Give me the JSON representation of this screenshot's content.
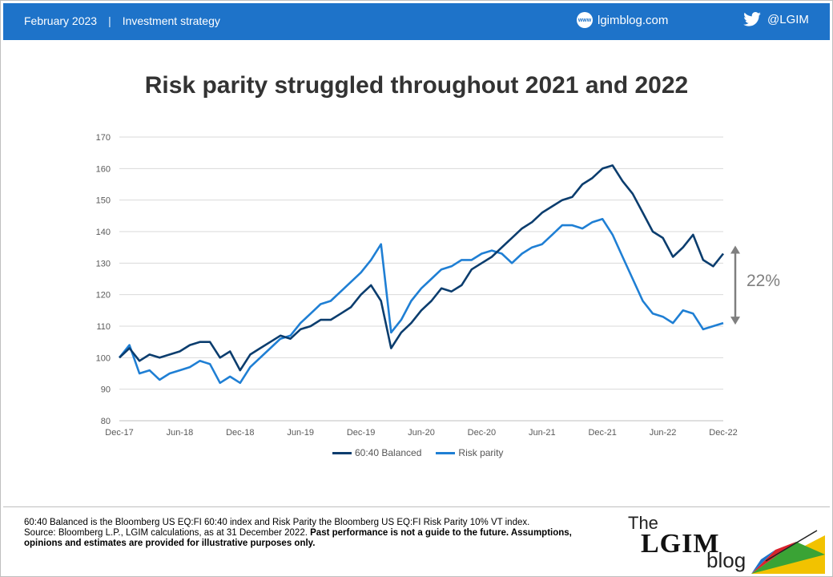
{
  "header": {
    "date": "February 2023",
    "separator": "|",
    "section": "Investment strategy",
    "website": "lgimblog.com",
    "website_icon_text": "www",
    "twitter_handle": "@LGIM"
  },
  "annotation": {
    "gap_label": "22%"
  },
  "footer": {
    "line1": "60:40 Balanced is the Bloomberg US EQ:FI 60:40 index and Risk Parity the Bloomberg US EQ:FI Risk Parity 10% VT index.",
    "line2_plain": "Source: Bloomberg L.P., LGIM calculations, as at 31 December 2022. ",
    "line2_bold": "Past performance is not a guide to the future. Assumptions, opinions and estimates are provided for illustrative purposes only."
  },
  "logo": {
    "the": "The",
    "lgim": "LGIM",
    "blog": "blog"
  },
  "colors": {
    "header_bg": "#1e73c9",
    "balanced": "#0b3d6e",
    "risk_parity": "#1f7fd4",
    "arrow": "#7f7f7f"
  },
  "chart_data": {
    "type": "line",
    "title": "Risk parity struggled throughout 2021 and 2022",
    "xlabel": "",
    "ylabel": "",
    "ylim": [
      80,
      170
    ],
    "yticks": [
      80,
      90,
      100,
      110,
      120,
      130,
      140,
      150,
      160,
      170
    ],
    "xticks": [
      "Dec-17",
      "Jun-18",
      "Dec-18",
      "Jun-19",
      "Dec-19",
      "Jun-20",
      "Dec-20",
      "Jun-21",
      "Dec-21",
      "Jun-22",
      "Dec-22"
    ],
    "grid": true,
    "legend_position": "bottom",
    "x": [
      "Dec-17",
      "Jan-18",
      "Feb-18",
      "Mar-18",
      "Apr-18",
      "May-18",
      "Jun-18",
      "Jul-18",
      "Aug-18",
      "Sep-18",
      "Oct-18",
      "Nov-18",
      "Dec-18",
      "Jan-19",
      "Feb-19",
      "Mar-19",
      "Apr-19",
      "May-19",
      "Jun-19",
      "Jul-19",
      "Aug-19",
      "Sep-19",
      "Oct-19",
      "Nov-19",
      "Dec-19",
      "Jan-20",
      "Feb-20",
      "Mar-20",
      "Apr-20",
      "May-20",
      "Jun-20",
      "Jul-20",
      "Aug-20",
      "Sep-20",
      "Oct-20",
      "Nov-20",
      "Dec-20",
      "Jan-21",
      "Feb-21",
      "Mar-21",
      "Apr-21",
      "May-21",
      "Jun-21",
      "Jul-21",
      "Aug-21",
      "Sep-21",
      "Oct-21",
      "Nov-21",
      "Dec-21",
      "Jan-22",
      "Feb-22",
      "Mar-22",
      "Apr-22",
      "May-22",
      "Jun-22",
      "Jul-22",
      "Aug-22",
      "Sep-22",
      "Oct-22",
      "Nov-22",
      "Dec-22"
    ],
    "series": [
      {
        "name": "60:40 Balanced",
        "values": [
          100,
          103,
          99,
          101,
          100,
          101,
          102,
          104,
          105,
          105,
          100,
          102,
          96,
          101,
          103,
          105,
          107,
          106,
          109,
          110,
          112,
          112,
          114,
          116,
          120,
          123,
          118,
          103,
          108,
          111,
          115,
          118,
          122,
          121,
          123,
          128,
          130,
          132,
          135,
          138,
          141,
          143,
          146,
          148,
          150,
          151,
          155,
          157,
          160,
          161,
          156,
          152,
          146,
          140,
          138,
          132,
          135,
          139,
          131,
          129,
          133
        ]
      },
      {
        "name": "Risk parity",
        "values": [
          100,
          104,
          95,
          96,
          93,
          95,
          96,
          97,
          99,
          98,
          92,
          94,
          92,
          97,
          100,
          103,
          106,
          107,
          111,
          114,
          117,
          118,
          121,
          124,
          127,
          131,
          136,
          108,
          112,
          118,
          122,
          125,
          128,
          129,
          131,
          131,
          133,
          134,
          133,
          130,
          133,
          135,
          136,
          139,
          142,
          142,
          141,
          143,
          144,
          139,
          132,
          125,
          118,
          114,
          113,
          111,
          115,
          114,
          109,
          110,
          111
        ]
      }
    ]
  }
}
